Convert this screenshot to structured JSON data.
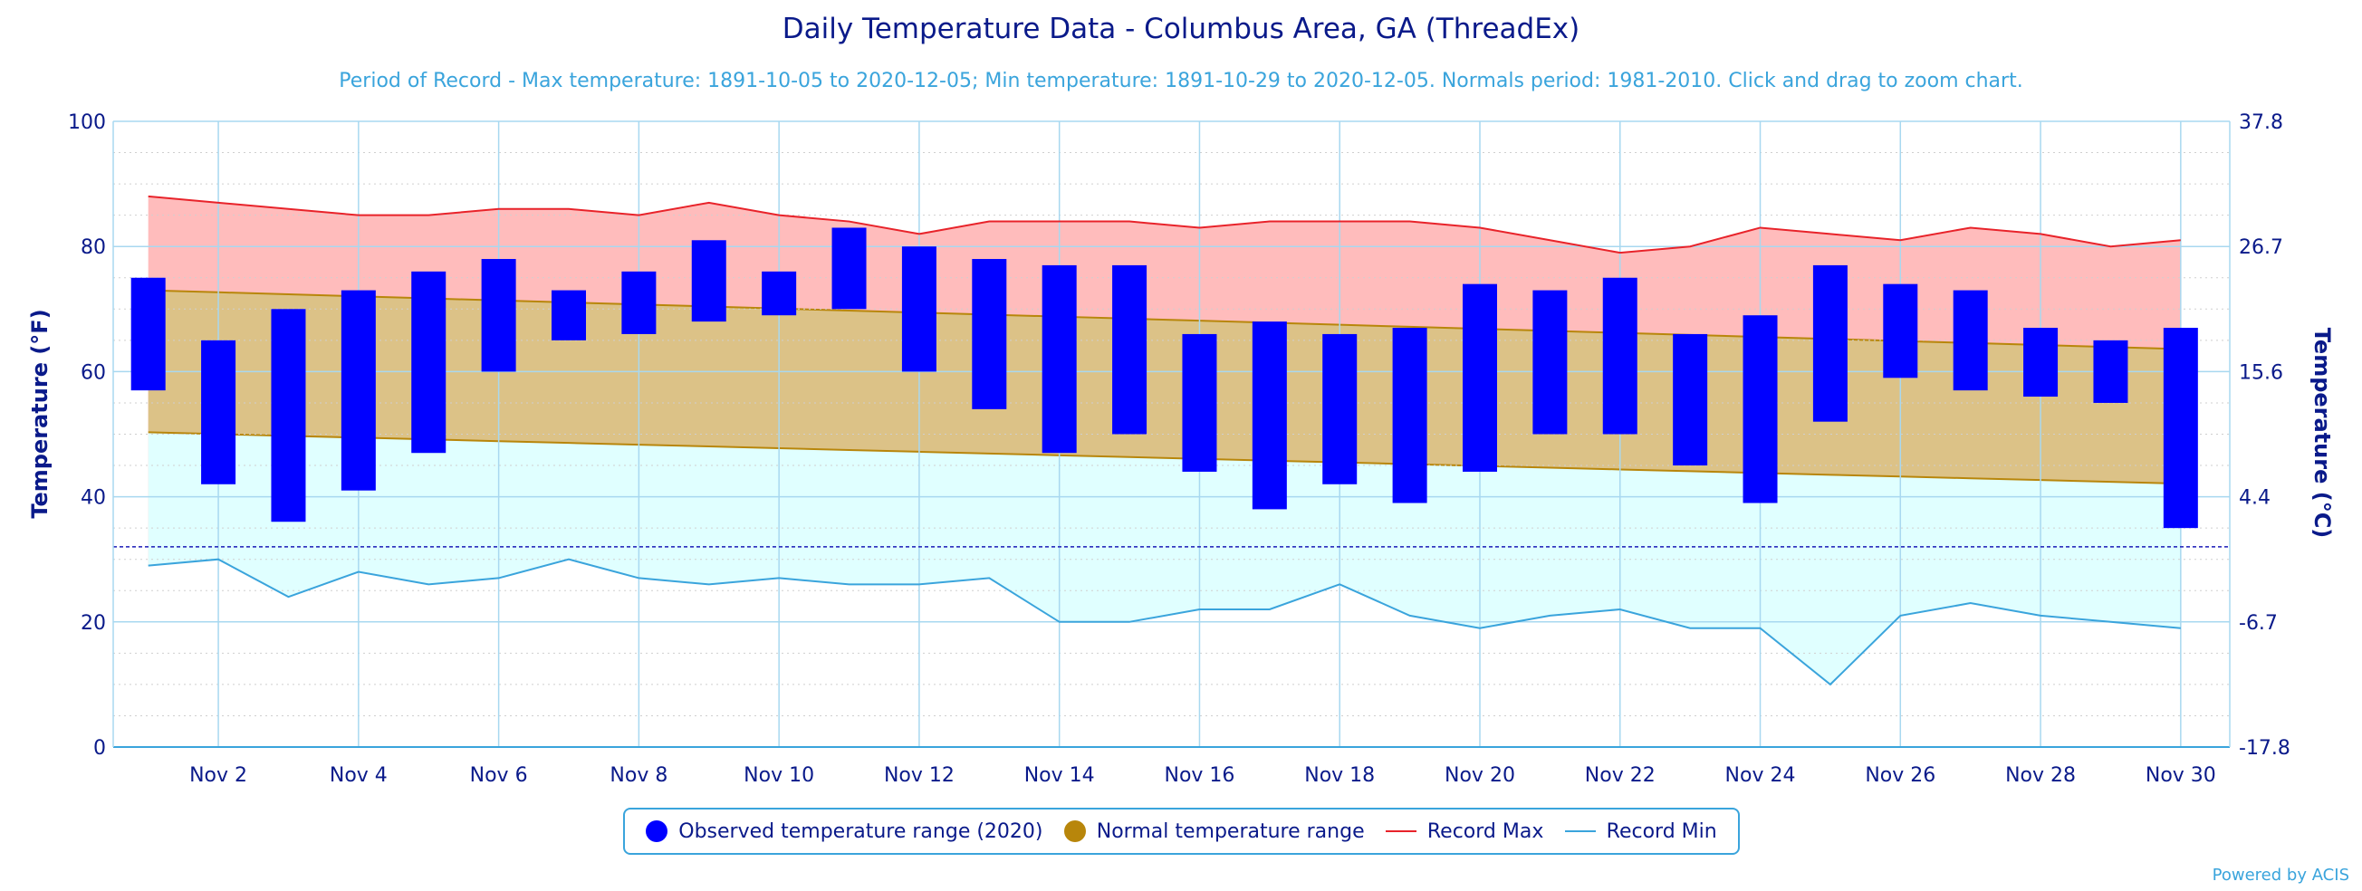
{
  "chart_data": {
    "type": "bar",
    "title": "Daily Temperature Data - Columbus Area, GA (ThreadEx)",
    "subtitle": "Period of Record - Max temperature: 1891-10-05 to 2020-12-05; Min temperature: 1891-10-29 to 2020-12-05. Normals period: 1981-2010. Click and drag to zoom chart.",
    "ylabel": "Temperature (°F)",
    "ylabel_right": "Temperature (°C)",
    "ylim": [
      0,
      100
    ],
    "yticks": [
      "0",
      "20",
      "40",
      "60",
      "80",
      "100"
    ],
    "yticks_right": [
      "-17.8",
      "-6.7",
      "4.4",
      "15.6",
      "26.7",
      "37.8"
    ],
    "freezing_line": 32,
    "x_days": [
      1,
      2,
      3,
      4,
      5,
      6,
      7,
      8,
      9,
      10,
      11,
      12,
      13,
      14,
      15,
      16,
      17,
      18,
      19,
      20,
      21,
      22,
      23,
      24,
      25,
      26,
      27,
      28,
      29,
      30
    ],
    "xtick_labels": [
      "Nov 2",
      "Nov 4",
      "Nov 6",
      "Nov 8",
      "Nov 10",
      "Nov 12",
      "Nov 14",
      "Nov 16",
      "Nov 18",
      "Nov 20",
      "Nov 22",
      "Nov 24",
      "Nov 26",
      "Nov 28",
      "Nov 30"
    ],
    "xtick_days": [
      2,
      4,
      6,
      8,
      10,
      12,
      14,
      16,
      18,
      20,
      22,
      24,
      26,
      28,
      30
    ],
    "series": [
      {
        "name": "Observed temperature range (2020)",
        "low": [
          57,
          42,
          36,
          41,
          47,
          60,
          65,
          66,
          68,
          69,
          70,
          60,
          54,
          47,
          50,
          44,
          38,
          42,
          39,
          44,
          50,
          50,
          45,
          39,
          52,
          59,
          57,
          56,
          55,
          35
        ],
        "high": [
          75,
          65,
          70,
          73,
          76,
          78,
          73,
          76,
          81,
          76,
          83,
          80,
          78,
          77,
          77,
          66,
          68,
          66,
          67,
          74,
          73,
          75,
          66,
          69,
          77,
          74,
          73,
          67,
          65,
          67
        ]
      },
      {
        "name": "Normal temperature range",
        "low_range": [
          50.3,
          42.1
        ],
        "high_range": [
          73.0,
          63.6
        ]
      },
      {
        "name": "Record Max",
        "values": [
          88,
          87,
          86,
          85,
          85,
          86,
          86,
          85,
          87,
          85,
          84,
          82,
          84,
          84,
          84,
          83,
          84,
          84,
          84,
          83,
          81,
          79,
          80,
          83,
          82,
          81,
          83,
          82,
          80,
          81
        ]
      },
      {
        "name": "Record Min",
        "values": [
          29,
          30,
          24,
          28,
          26,
          27,
          30,
          27,
          26,
          27,
          26,
          26,
          27,
          20,
          20,
          22,
          22,
          26,
          21,
          19,
          21,
          22,
          19,
          19,
          10,
          21,
          23,
          21,
          20,
          19
        ]
      }
    ],
    "grid": true,
    "legend_position": "bottom-center"
  },
  "colors": {
    "observed": "#0000ff",
    "normal_fill": "#dcc287",
    "normal_line": "#b8860b",
    "record_max": "#e8232a",
    "record_max_fill": "#ffbcbc",
    "record_min": "#3aa4dc",
    "record_min_fill": "#e0ffff",
    "axis_text": "#0a1a8a",
    "grid": "#a8d8f0"
  },
  "legend": {
    "observed": "Observed temperature range (2020)",
    "normal": "Normal temperature range",
    "record_max": "Record Max",
    "record_min": "Record Min"
  },
  "credit": "Powered by ACIS"
}
